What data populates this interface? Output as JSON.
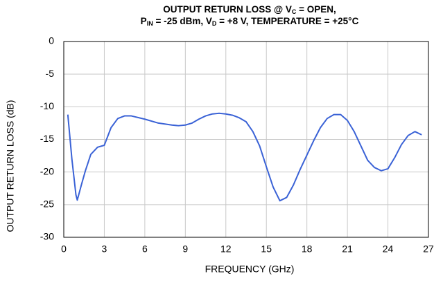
{
  "chart_data": {
    "type": "line",
    "title": [
      [
        "OUTPUT RETURN LOSS @ V",
        "C",
        " = OPEN,"
      ],
      [
        "P",
        "IN",
        " = -25 dBm, V",
        "D",
        " = +8 V, TEMPERATURE = +25°C"
      ]
    ],
    "xlabel": "FREQUENCY (GHz)",
    "ylabel": "OUTPUT RETURN LOSS (dB)",
    "x": [
      0.3,
      0.6,
      0.9,
      1.0,
      1.3,
      1.6,
      2.0,
      2.5,
      3.0,
      3.5,
      4.0,
      4.5,
      5.0,
      6.0,
      7.0,
      8.0,
      8.5,
      9.0,
      9.5,
      10.0,
      10.5,
      11.0,
      11.5,
      12.0,
      12.5,
      13.0,
      13.5,
      14.0,
      14.5,
      15.0,
      15.5,
      16.0,
      16.5,
      17.0,
      17.5,
      18.0,
      18.5,
      19.0,
      19.5,
      20.0,
      20.5,
      21.0,
      21.5,
      22.0,
      22.5,
      23.0,
      23.5,
      24.0,
      24.5,
      25.0,
      25.5,
      26.0,
      26.5
    ],
    "series": [
      {
        "color": "#3a62d6",
        "values": [
          -11.2,
          -18,
          -23.5,
          -24.3,
          -22,
          -19.8,
          -17.3,
          -16.2,
          -15.9,
          -13.2,
          -11.8,
          -11.4,
          -11.4,
          -11.9,
          -12.5,
          -12.8,
          -12.9,
          -12.8,
          -12.5,
          -11.9,
          -11.4,
          -11.1,
          -11.0,
          -11.1,
          -11.3,
          -11.7,
          -12.3,
          -13.8,
          -16.0,
          -19.2,
          -22.3,
          -24.4,
          -23.9,
          -22.0,
          -19.6,
          -17.4,
          -15.2,
          -13.2,
          -11.8,
          -11.2,
          -11.2,
          -12.1,
          -13.8,
          -16.0,
          -18.2,
          -19.3,
          -19.8,
          -19.5,
          -17.8,
          -15.8,
          -14.4,
          -13.8,
          -14.3
        ]
      }
    ],
    "xlim": [
      0,
      27
    ],
    "xticks": [
      0,
      3,
      6,
      9,
      12,
      15,
      18,
      21,
      24,
      27
    ],
    "ylim": [
      -30,
      0
    ],
    "yticks": [
      0,
      -5,
      -10,
      -15,
      -20,
      -25,
      -30
    ],
    "grid": true
  }
}
